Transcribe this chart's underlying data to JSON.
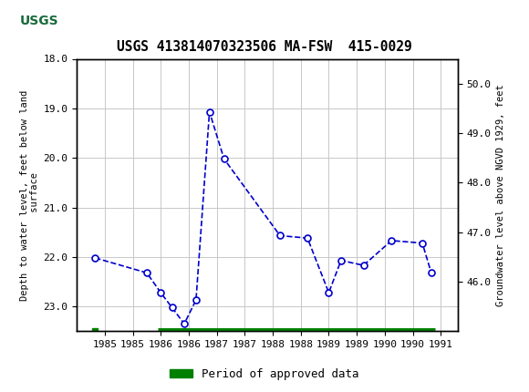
{
  "title": "USGS 413814070323506 MA-FSW  415-0029",
  "ylabel_left": "Depth to water level, feet below land\n surface",
  "ylabel_right": "Groundwater level above NGVD 1929, feet",
  "ylim_left_top": 18.0,
  "ylim_left_bottom": 23.5,
  "ylim_right_top": 50.5,
  "ylim_right_bottom": 45.0,
  "xlim_left": 1984.5,
  "xlim_right": 1991.3,
  "xticks": [
    1985.0,
    1985.5,
    1986.0,
    1986.5,
    1987.0,
    1987.5,
    1988.0,
    1988.5,
    1989.0,
    1989.5,
    1990.0,
    1990.5,
    1991.0
  ],
  "xticklabels": [
    "1985",
    "1985",
    "1986",
    "1986",
    "1987",
    "1987",
    "1988",
    "1988",
    "1989",
    "1989",
    "1990",
    "1990",
    "1991"
  ],
  "yticks_left": [
    18.0,
    19.0,
    20.0,
    21.0,
    22.0,
    23.0
  ],
  "yticks_right": [
    50.0,
    49.0,
    48.0,
    47.0,
    46.0
  ],
  "data_x": [
    1984.83,
    1985.75,
    1986.0,
    1986.2,
    1986.42,
    1986.63,
    1986.87,
    1987.13,
    1988.13,
    1988.62,
    1989.0,
    1989.22,
    1989.62,
    1990.12,
    1990.67,
    1990.83
  ],
  "data_y": [
    22.02,
    22.32,
    22.72,
    23.02,
    23.35,
    22.87,
    19.07,
    20.02,
    21.57,
    21.62,
    22.72,
    22.07,
    22.17,
    21.67,
    21.72,
    22.32
  ],
  "line_color": "#0000cc",
  "marker_face": "#ffffff",
  "line_width": 1.2,
  "marker_size": 5,
  "grid_color": "#c8c8c8",
  "bg_color": "#ffffff",
  "header_color": "#1a6b3c",
  "legend_label": "Period of approved data",
  "approved_color": "#008000",
  "approved_small_x": 1984.83,
  "approved_x2_start": 1985.95,
  "approved_x2_end": 1990.9
}
